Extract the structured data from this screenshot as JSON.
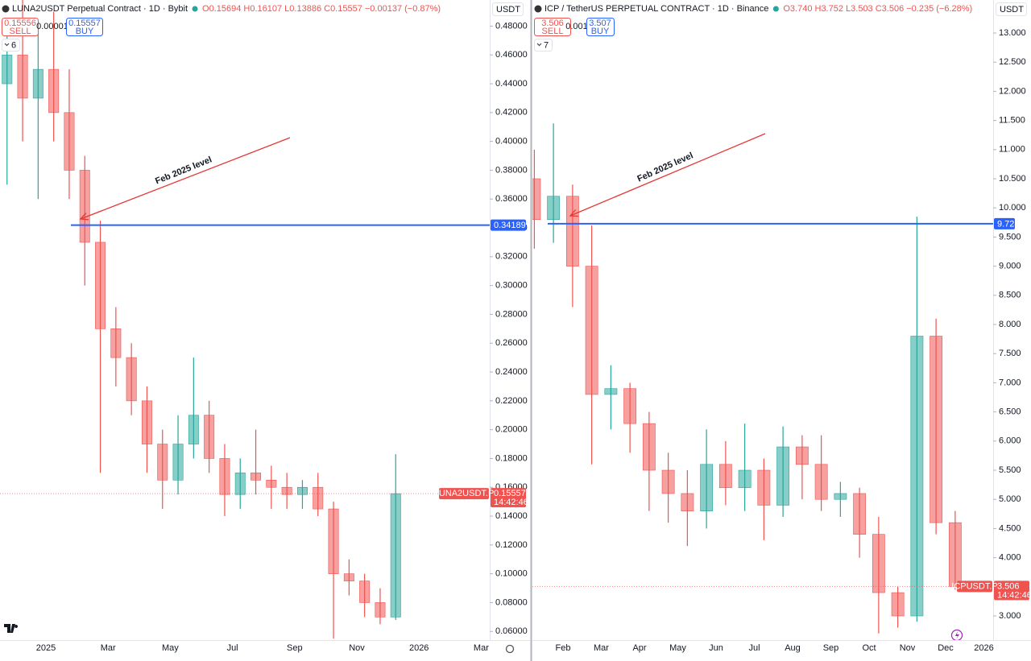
{
  "chart_data": [
    {
      "type": "candlestick",
      "title": "LUNA2USDT Perpetual Contract · 1D · Bybit",
      "ohlc_text": "O0.15694 H0.16107 L0.13886 C0.15557 −0.00137 (−0.87%)",
      "sell_price": 0.15556,
      "sell_label": "SELL",
      "spread": 1e-05,
      "buy_price": 0.15557,
      "buy_label": "BUY",
      "indicator_count": 6,
      "currency": "USDT",
      "annotation": "Feb 2025 level",
      "hline": 0.34189,
      "hline_color": "#2962ff",
      "symbol_label": "LUNA2USDT.P",
      "last_price": 0.15557,
      "countdown": "14:42:46",
      "up_color": "#26a69a",
      "down_color": "#ef5350",
      "categories": [
        null,
        null,
        null,
        "2025",
        null,
        null,
        null,
        "Mar",
        null,
        null,
        null,
        "May",
        null,
        null,
        null,
        "Jul",
        null,
        null,
        null,
        "Sep",
        null,
        null,
        null,
        "Nov",
        null,
        null,
        null,
        "2026",
        null,
        null,
        null,
        "Mar"
      ],
      "open": [
        0.44,
        0.46,
        0.43,
        0.45,
        0.42,
        0.38,
        0.33,
        0.27,
        0.25,
        0.22,
        0.19,
        0.165,
        0.19,
        0.21,
        0.18,
        0.155,
        0.17,
        0.165,
        0.16,
        0.155,
        0.16,
        0.145,
        0.1,
        0.095,
        0.08,
        0.07,
        null,
        null,
        null,
        null,
        null,
        null
      ],
      "high": [
        0.48,
        0.5,
        0.48,
        0.49,
        0.45,
        0.39,
        0.345,
        0.285,
        0.26,
        0.23,
        0.2,
        0.21,
        0.25,
        0.22,
        0.19,
        0.18,
        0.2,
        0.175,
        0.17,
        0.165,
        0.17,
        0.15,
        0.11,
        0.1,
        0.09,
        0.183,
        null,
        null,
        null,
        null,
        null,
        null
      ],
      "low": [
        0.37,
        0.4,
        0.36,
        0.4,
        0.36,
        0.3,
        0.17,
        0.23,
        0.21,
        0.17,
        0.145,
        0.155,
        0.18,
        0.17,
        0.14,
        0.145,
        0.155,
        0.145,
        0.145,
        0.145,
        0.14,
        0.055,
        0.085,
        0.07,
        0.065,
        0.068,
        null,
        null,
        null,
        null,
        null,
        null
      ],
      "close": [
        0.46,
        0.43,
        0.45,
        0.42,
        0.38,
        0.33,
        0.27,
        0.25,
        0.22,
        0.19,
        0.165,
        0.19,
        0.21,
        0.18,
        0.155,
        0.17,
        0.165,
        0.16,
        0.155,
        0.16,
        0.145,
        0.1,
        0.095,
        0.08,
        0.07,
        0.15557,
        null,
        null,
        null,
        null,
        null,
        null
      ],
      "ylim": [
        0.054,
        0.497
      ],
      "yticks": [
        {
          "value": 0.06,
          "label": "0.06000"
        },
        {
          "value": 0.08,
          "label": "0.08000"
        },
        {
          "value": 0.1,
          "label": "0.10000"
        },
        {
          "value": 0.12,
          "label": "0.12000"
        },
        {
          "value": 0.14,
          "label": "0.14000"
        },
        {
          "value": 0.16,
          "label": "0.16000"
        },
        {
          "value": 0.18,
          "label": "0.18000"
        },
        {
          "value": 0.2,
          "label": "0.20000"
        },
        {
          "value": 0.22,
          "label": "0.22000"
        },
        {
          "value": 0.24,
          "label": "0.24000"
        },
        {
          "value": 0.26,
          "label": "0.26000"
        },
        {
          "value": 0.28,
          "label": "0.28000"
        },
        {
          "value": 0.3,
          "label": "0.30000"
        },
        {
          "value": 0.32,
          "label": "0.32000"
        },
        {
          "value": 0.34,
          "label": "0.34000"
        },
        {
          "value": 0.36,
          "label": "0.36000"
        },
        {
          "value": 0.38,
          "label": "0.38000"
        },
        {
          "value": 0.4,
          "label": "0.40000"
        },
        {
          "value": 0.42,
          "label": "0.42000"
        },
        {
          "value": 0.44,
          "label": "0.44000"
        },
        {
          "value": 0.46,
          "label": "0.46000"
        },
        {
          "value": 0.48,
          "label": "0.48000"
        }
      ]
    },
    {
      "type": "candlestick",
      "title": "ICP / TetherUS PERPETUAL CONTRACT · 1D · Binance",
      "ohlc_text": "O3.740 H3.752 L3.503 C3.506 −0.235 (−6.28%)",
      "sell_price": 3.506,
      "sell_label": "SELL",
      "spread": 0.001,
      "buy_price": 3.507,
      "buy_label": "BUY",
      "indicator_count": 7,
      "currency": "USDT",
      "annotation": "Feb 2025 level",
      "hline": 9.728,
      "hline_color": "#2962ff",
      "symbol_label": "ICPUSDT.P",
      "last_price": 3.506,
      "countdown": "14:42:46",
      "up_color": "#26a69a",
      "down_color": "#ef5350",
      "categories": [
        null,
        null,
        "Feb",
        null,
        "Mar",
        null,
        "Apr",
        null,
        "May",
        null,
        "Jun",
        null,
        "Jul",
        null,
        "Aug",
        null,
        "Sep",
        null,
        "Oct",
        null,
        "Nov",
        null,
        "Dec",
        null,
        "2026"
      ],
      "open": [
        10.5,
        9.8,
        10.2,
        9.0,
        6.8,
        6.9,
        6.3,
        5.5,
        5.1,
        4.8,
        5.6,
        5.2,
        5.5,
        4.9,
        5.9,
        5.6,
        5.0,
        5.1,
        4.4,
        3.4,
        3.0,
        7.8,
        4.6,
        null,
        null
      ],
      "high": [
        11.0,
        11.45,
        10.4,
        9.7,
        7.3,
        7.0,
        6.5,
        5.8,
        5.5,
        6.2,
        6.0,
        6.3,
        5.7,
        6.25,
        6.1,
        6.1,
        5.3,
        5.2,
        4.7,
        3.5,
        9.85,
        8.1,
        4.8,
        null,
        null
      ],
      "low": [
        9.3,
        9.4,
        8.3,
        5.6,
        6.2,
        5.8,
        4.8,
        4.6,
        4.2,
        4.5,
        4.9,
        4.8,
        4.3,
        4.7,
        5.0,
        4.8,
        4.7,
        4.0,
        2.7,
        2.8,
        2.9,
        4.4,
        3.45,
        null,
        null
      ],
      "close": [
        9.8,
        10.2,
        9.0,
        6.8,
        6.9,
        6.3,
        5.5,
        5.1,
        4.8,
        5.6,
        5.2,
        5.5,
        4.9,
        5.9,
        5.6,
        5.0,
        5.1,
        4.4,
        3.4,
        3.0,
        7.8,
        4.6,
        3.506,
        null,
        null
      ],
      "ylim": [
        2.586,
        13.539
      ],
      "yticks": [
        {
          "value": 3,
          "label": "3.000"
        },
        {
          "value": 3.5,
          "label": "3.500"
        },
        {
          "value": 4,
          "label": "4.000"
        },
        {
          "value": 4.5,
          "label": "4.500"
        },
        {
          "value": 5,
          "label": "5.000"
        },
        {
          "value": 5.5,
          "label": "5.500"
        },
        {
          "value": 6,
          "label": "6.000"
        },
        {
          "value": 6.5,
          "label": "6.500"
        },
        {
          "value": 7,
          "label": "7.000"
        },
        {
          "value": 7.5,
          "label": "7.500"
        },
        {
          "value": 8,
          "label": "8.000"
        },
        {
          "value": 8.5,
          "label": "8.500"
        },
        {
          "value": 9,
          "label": "9.000"
        },
        {
          "value": 9.5,
          "label": "9.500"
        },
        {
          "value": 10,
          "label": "10.000"
        },
        {
          "value": 10.5,
          "label": "10.500"
        },
        {
          "value": 11,
          "label": "11.000"
        },
        {
          "value": 11.5,
          "label": "11.500"
        },
        {
          "value": 12,
          "label": "12.000"
        },
        {
          "value": 12.5,
          "label": "12.500"
        },
        {
          "value": 13,
          "label": "13.000"
        }
      ]
    }
  ]
}
